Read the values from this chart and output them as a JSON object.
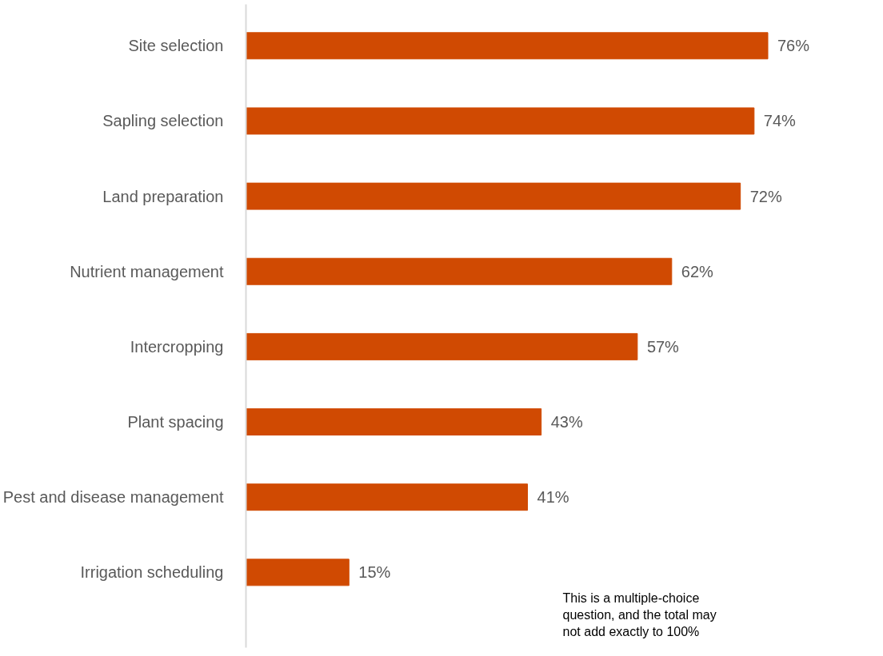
{
  "chart_data": {
    "type": "bar",
    "orientation": "horizontal",
    "categories": [
      "Site selection",
      "Sapling selection",
      "Land preparation",
      "Nutrient management",
      "Intercropping",
      "Plant spacing",
      "Pest and disease management",
      "Irrigation scheduling"
    ],
    "values": [
      76,
      74,
      72,
      62,
      57,
      43,
      41,
      15
    ],
    "value_labels": [
      "76%",
      "74%",
      "72%",
      "62%",
      "57%",
      "43%",
      "41%",
      "15%"
    ],
    "color": "#d04a02",
    "grid": false,
    "annotations": [
      "This is a multiple-choice question, and the total may not add exactly to 100%"
    ]
  }
}
